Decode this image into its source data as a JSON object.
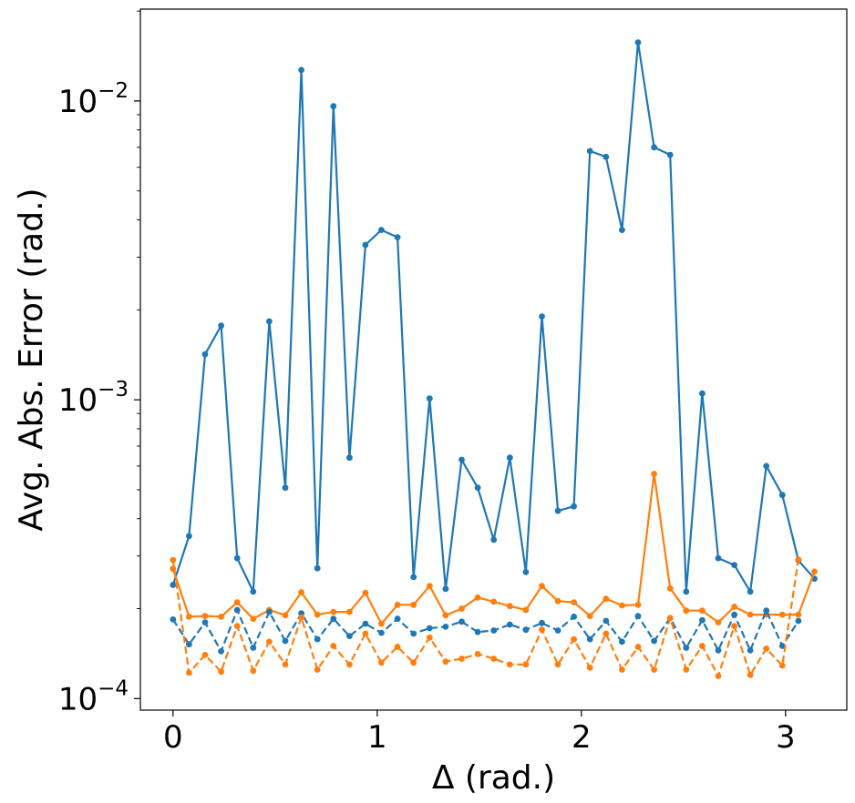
{
  "chart_data": {
    "type": "line",
    "xlabel": "Δ (rad.)",
    "ylabel": "Avg. Abs. Error (rad.)",
    "yscale": "log",
    "xlim": [
      -0.16,
      3.3
    ],
    "ylim": [
      9.15e-05,
      0.0203
    ],
    "grid": false,
    "legend": "none",
    "xticks": [
      {
        "value": 0,
        "label": "0"
      },
      {
        "value": 1,
        "label": "1"
      },
      {
        "value": 2,
        "label": "2"
      },
      {
        "value": 3,
        "label": "3"
      }
    ],
    "yticks": [
      {
        "value": 0.0001,
        "base": "10",
        "exp": "−4"
      },
      {
        "value": 0.001,
        "base": "10",
        "exp": "−3"
      },
      {
        "value": 0.01,
        "base": "10",
        "exp": "−2"
      }
    ],
    "series": [
      {
        "color": "#1f77b4",
        "linestyle": "solid",
        "marker": "circle",
        "points": [
          [
            0,
            0.00024
          ],
          [
            0.0785,
            0.00035
          ],
          [
            0.157,
            0.00142
          ],
          [
            0.2356,
            0.00177
          ],
          [
            0.3142,
            0.000295
          ],
          [
            0.3927,
            0.000228
          ],
          [
            0.4712,
            0.00183
          ],
          [
            0.5498,
            0.000508
          ],
          [
            0.6283,
            0.0127
          ],
          [
            0.7069,
            0.000273
          ],
          [
            0.7854,
            0.0096
          ],
          [
            0.864,
            0.00064
          ],
          [
            0.9425,
            0.0033
          ],
          [
            1.0205,
            0.0037
          ],
          [
            1.0996,
            0.0035
          ],
          [
            1.1781,
            0.000255
          ],
          [
            1.2566,
            0.00101
          ],
          [
            1.3352,
            0.000233
          ],
          [
            1.4137,
            0.00063
          ],
          [
            1.4923,
            0.000508
          ],
          [
            1.5708,
            0.00034
          ],
          [
            1.6493,
            0.00064
          ],
          [
            1.7279,
            0.000265
          ],
          [
            1.8064,
            0.0019
          ],
          [
            1.885,
            0.000425
          ],
          [
            1.9635,
            0.00044
          ],
          [
            2.0421,
            0.0068
          ],
          [
            2.1206,
            0.0065
          ],
          [
            2.1991,
            0.0037
          ],
          [
            2.2777,
            0.0157
          ],
          [
            2.3562,
            0.007
          ],
          [
            2.4347,
            0.0066
          ],
          [
            2.5133,
            0.000228
          ],
          [
            2.5918,
            0.00105
          ],
          [
            2.6704,
            0.000295
          ],
          [
            2.7489,
            0.00028
          ],
          [
            2.8274,
            0.000228
          ],
          [
            2.906,
            0.0006
          ],
          [
            2.9845,
            0.00048
          ],
          [
            3.0631,
            0.00029
          ],
          [
            3.1416,
            0.000252
          ]
        ]
      },
      {
        "color": "#ff7f0e",
        "linestyle": "solid",
        "marker": "circle",
        "points": [
          [
            0,
            0.000272
          ],
          [
            0.0785,
            0.000188
          ],
          [
            0.157,
            0.000189
          ],
          [
            0.2356,
            0.000188
          ],
          [
            0.3142,
            0.00021
          ],
          [
            0.3927,
            0.000185
          ],
          [
            0.4712,
            0.000198
          ],
          [
            0.5498,
            0.00019
          ],
          [
            0.6283,
            0.000227
          ],
          [
            0.7069,
            0.000191
          ],
          [
            0.7854,
            0.000195
          ],
          [
            0.864,
            0.000195
          ],
          [
            0.9425,
            0.000226
          ],
          [
            1.0205,
            0.000178
          ],
          [
            1.0996,
            0.000206
          ],
          [
            1.1781,
            0.000206
          ],
          [
            1.2566,
            0.000238
          ],
          [
            1.3352,
            0.00019
          ],
          [
            1.4137,
            0.0002
          ],
          [
            1.4923,
            0.000218
          ],
          [
            1.5708,
            0.000211
          ],
          [
            1.6493,
            0.000204
          ],
          [
            1.7279,
            0.000198
          ],
          [
            1.8064,
            0.000238
          ],
          [
            1.885,
            0.000212
          ],
          [
            1.9635,
            0.00021
          ],
          [
            2.0421,
            0.000189
          ],
          [
            2.1206,
            0.000216
          ],
          [
            2.1991,
            0.000205
          ],
          [
            2.2777,
            0.000206
          ],
          [
            2.3562,
            0.000565
          ],
          [
            2.4347,
            0.000234
          ],
          [
            2.5133,
            0.000197
          ],
          [
            2.5918,
            0.000197
          ],
          [
            2.6704,
            0.00018
          ],
          [
            2.7489,
            0.000203
          ],
          [
            2.8274,
            0.000191
          ],
          [
            2.906,
            0.000191
          ],
          [
            2.9845,
            0.000191
          ],
          [
            3.0631,
            0.000191
          ],
          [
            3.1416,
            0.000266
          ]
        ]
      },
      {
        "color": "#1f77b4",
        "linestyle": "dashed",
        "marker": "circle",
        "points": [
          [
            0,
            0.000184
          ],
          [
            0.0785,
            0.000152
          ],
          [
            0.157,
            0.00018
          ],
          [
            0.2356,
            0.000144
          ],
          [
            0.3142,
            0.000198
          ],
          [
            0.3927,
            0.000148
          ],
          [
            0.4712,
            0.000195
          ],
          [
            0.5498,
            0.000156
          ],
          [
            0.6283,
            0.000193
          ],
          [
            0.7069,
            0.000158
          ],
          [
            0.7854,
            0.000185
          ],
          [
            0.864,
            0.000162
          ],
          [
            0.9425,
            0.000178
          ],
          [
            1.0205,
            0.000166
          ],
          [
            1.0996,
            0.000185
          ],
          [
            1.1781,
            0.000165
          ],
          [
            1.2566,
            0.000172
          ],
          [
            1.3352,
            0.000174
          ],
          [
            1.4137,
            0.000181
          ],
          [
            1.4923,
            0.000167
          ],
          [
            1.5708,
            0.000169
          ],
          [
            1.6493,
            0.000177
          ],
          [
            1.7279,
            0.00017
          ],
          [
            1.8064,
            0.000179
          ],
          [
            1.885,
            0.000169
          ],
          [
            1.9635,
            0.000188
          ],
          [
            2.0421,
            0.000158
          ],
          [
            2.1206,
            0.000182
          ],
          [
            2.1991,
            0.000155
          ],
          [
            2.2777,
            0.000189
          ],
          [
            2.3562,
            0.000156
          ],
          [
            2.4347,
            0.000186
          ],
          [
            2.5133,
            0.000148
          ],
          [
            2.5918,
            0.000183
          ],
          [
            2.6704,
            0.000145
          ],
          [
            2.7489,
            0.000191
          ],
          [
            2.8274,
            0.000145
          ],
          [
            2.906,
            0.000197
          ],
          [
            2.9845,
            0.00015
          ],
          [
            3.0631,
            0.000182
          ]
        ]
      },
      {
        "color": "#ff7f0e",
        "linestyle": "dashed",
        "marker": "circle",
        "points": [
          [
            0,
            0.000291
          ],
          [
            0.0785,
            0.000122
          ],
          [
            0.157,
            0.00014
          ],
          [
            0.2356,
            0.000123
          ],
          [
            0.3142,
            0.000175
          ],
          [
            0.3927,
            0.000124
          ],
          [
            0.4712,
            0.000155
          ],
          [
            0.5498,
            0.00013
          ],
          [
            0.6283,
            0.000187
          ],
          [
            0.7069,
            0.000125
          ],
          [
            0.7854,
            0.00015
          ],
          [
            0.864,
            0.00013
          ],
          [
            0.9425,
            0.000165
          ],
          [
            1.0205,
            0.000132
          ],
          [
            1.0996,
            0.000149
          ],
          [
            1.1781,
            0.000132
          ],
          [
            1.2566,
            0.00016
          ],
          [
            1.3352,
            0.000133
          ],
          [
            1.4137,
            0.000136
          ],
          [
            1.4923,
            0.000141
          ],
          [
            1.5708,
            0.000136
          ],
          [
            1.6493,
            0.00013
          ],
          [
            1.7279,
            0.00013
          ],
          [
            1.8064,
            0.00017
          ],
          [
            1.885,
            0.00013
          ],
          [
            1.9635,
            0.000158
          ],
          [
            2.0421,
            0.000127
          ],
          [
            2.1206,
            0.000165
          ],
          [
            2.1991,
            0.000125
          ],
          [
            2.2777,
            0.000149
          ],
          [
            2.3562,
            0.000125
          ],
          [
            2.4347,
            0.000186
          ],
          [
            2.5133,
            0.000125
          ],
          [
            2.5918,
            0.00015
          ],
          [
            2.6704,
            0.000119
          ],
          [
            2.7489,
            0.000175
          ],
          [
            2.8274,
            0.00012
          ],
          [
            2.906,
            0.000147
          ],
          [
            2.9845,
            0.000129
          ],
          [
            3.0631,
            0.000292
          ]
        ]
      }
    ]
  }
}
